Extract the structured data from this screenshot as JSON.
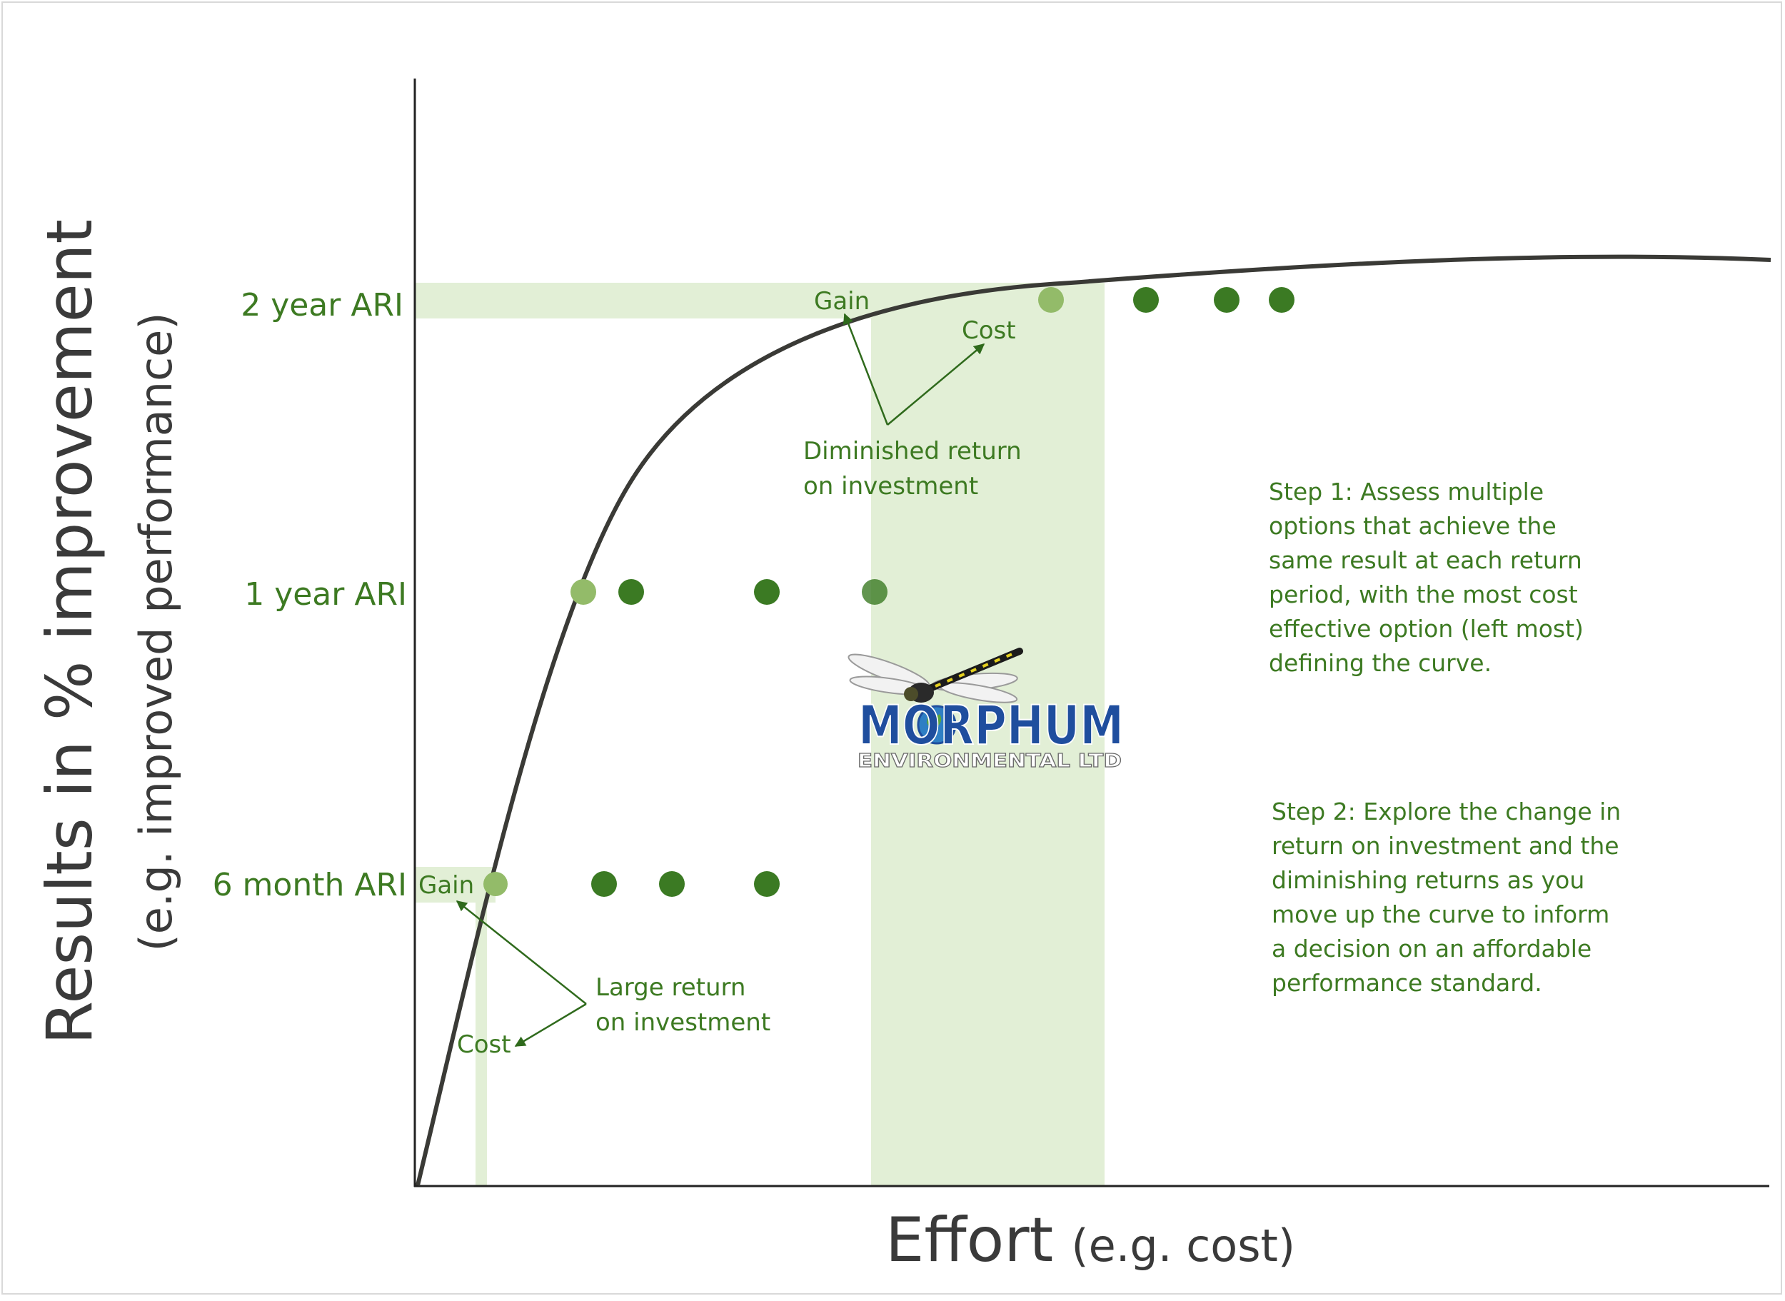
{
  "axes": {
    "y_title": "Results in % improvement",
    "y_subtitle": "(e.g. improved performance)",
    "x_title": "Effort",
    "x_subtitle": "(e.g. cost)"
  },
  "levels": [
    {
      "label": "2 year ARI"
    },
    {
      "label": "1 year ARI"
    },
    {
      "label": "6 month ARI"
    }
  ],
  "annotations": {
    "gain_top": "Gain",
    "cost_top": "Cost",
    "diminished_line1": "Diminished return",
    "diminished_line2": "on investment",
    "gain_bottom": "Gain",
    "cost_bottom": "Cost",
    "large_line1": "Large return",
    "large_line2": "on investment"
  },
  "steps": {
    "step1": [
      "Step 1: Assess multiple",
      "options that achieve the",
      "same result at each return",
      "period, with the most cost",
      "effective option (left most)",
      "defining the curve."
    ],
    "step2": [
      "Step 2:  Explore the change in",
      "return on investment and the",
      "diminishing returns as you",
      "move up the curve to inform",
      "a decision on an affordable",
      "performance standard."
    ]
  },
  "logo": {
    "name": "MORPHUM",
    "sub": "ENVIRONMENTAL LTD"
  },
  "colors": {
    "curve": "#3a3a36",
    "highlight": "#e2efd6",
    "dot_dark": "#3b7a23",
    "dot_light": "#93bb69",
    "text_green": "#3d7a22",
    "axis": "#222222"
  }
}
